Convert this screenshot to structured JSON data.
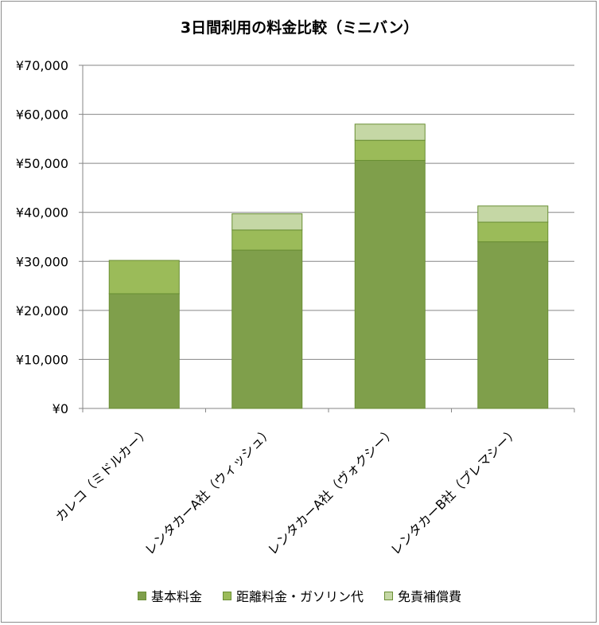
{
  "chart_data": {
    "type": "bar",
    "stacked": true,
    "title": "3日間利用の料金比較（ミニバン）",
    "categories": [
      "カレコ（ミドルカー）",
      "レンタカーA社（ウィッシュ）",
      "レンタカーA社（ヴォクシー）",
      "レンタカーB社（プレマシー）"
    ],
    "series": [
      {
        "name": "基本料金",
        "color": "#7f9f4b",
        "values": [
          23400,
          32300,
          50600,
          34000
        ]
      },
      {
        "name": "距離料金・ガソリン代",
        "color": "#9bbb59",
        "values": [
          6800,
          4100,
          4100,
          4000
        ]
      },
      {
        "name": "免責補償費",
        "color": "#c5d7a5",
        "values": [
          0,
          3300,
          3300,
          3300
        ]
      }
    ],
    "ylim": [
      0,
      70000
    ],
    "yticks": [
      "¥0",
      "¥10,000",
      "¥20,000",
      "¥30,000",
      "¥40,000",
      "¥50,000",
      "¥60,000",
      "¥70,000"
    ],
    "grid": true,
    "legend_position": "bottom"
  }
}
